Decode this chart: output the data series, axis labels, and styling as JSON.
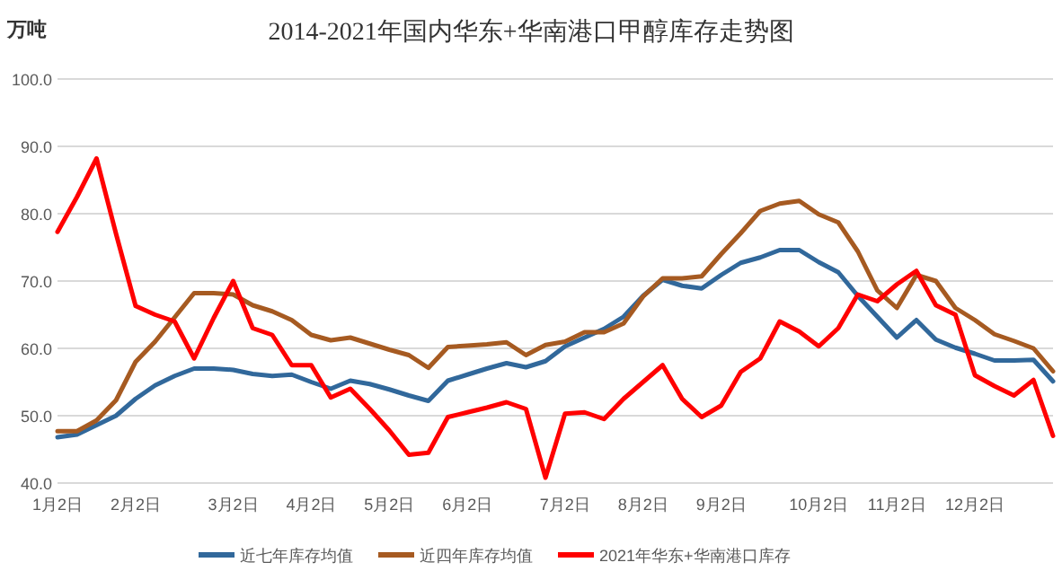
{
  "chart_data": {
    "type": "line",
    "title": "2014-2021年国内华东+华南港口甲醇库存走势图",
    "ylabel": "万吨",
    "categories": [
      "1月2日",
      null,
      null,
      null,
      "2月2日",
      null,
      null,
      null,
      null,
      "3月2日",
      null,
      null,
      null,
      "4月2日",
      null,
      null,
      null,
      "5月2日",
      null,
      null,
      null,
      "6月2日",
      null,
      null,
      null,
      null,
      "7月2日",
      null,
      null,
      null,
      "8月2日",
      null,
      null,
      null,
      "9月2日",
      null,
      null,
      null,
      null,
      "10月2日",
      null,
      null,
      null,
      "11月2日",
      null,
      null,
      null,
      "12月2日",
      null,
      null,
      null,
      null
    ],
    "ylim": [
      40,
      100
    ],
    "yticks": [
      {
        "value": 40,
        "label": "40.0"
      },
      {
        "value": 50,
        "label": "50.0"
      },
      {
        "value": 60,
        "label": "60.0"
      },
      {
        "value": 70,
        "label": "70.0"
      },
      {
        "value": 80,
        "label": "80.0"
      },
      {
        "value": 90,
        "label": "90.0"
      },
      {
        "value": 100,
        "label": "100.0"
      }
    ],
    "grid": "y",
    "legend": "bottom",
    "line_style": "solid",
    "marker": "none",
    "series": [
      {
        "name": "近七年库存均值",
        "color": "#31689b",
        "values": [
          46.8,
          47.2,
          48.6,
          50,
          52.5,
          54.5,
          55.9,
          57,
          57,
          56.8,
          56.2,
          55.9,
          56.1,
          55,
          54,
          55.2,
          54.7,
          53.9,
          53,
          52.2,
          55.2,
          56.1,
          57,
          57.8,
          57.2,
          58.1,
          60.3,
          61.6,
          62.9,
          64.7,
          67.8,
          70.2,
          69.3,
          68.9,
          70.9,
          72.7,
          73.5,
          74.6,
          74.6,
          72.8,
          71.3,
          67.8,
          64.7,
          61.6,
          64.2,
          61.3,
          60.1,
          59.2,
          58.2,
          58.2,
          58.3,
          55.1
        ]
      },
      {
        "name": "近四年库存均值",
        "color": "#a65a21",
        "values": [
          47.7,
          47.7,
          49.3,
          52.3,
          58,
          61,
          64.6,
          68.2,
          68.2,
          68,
          66.4,
          65.5,
          64.2,
          62,
          61.2,
          61.6,
          60.7,
          59.8,
          59,
          57.1,
          60.2,
          60.4,
          60.6,
          60.9,
          59,
          60.5,
          61,
          62.4,
          62.4,
          63.7,
          67.7,
          70.4,
          70.4,
          70.7,
          74,
          77.1,
          80.4,
          81.5,
          81.9,
          79.9,
          78.7,
          74.4,
          68.6,
          66,
          70.9,
          70,
          66,
          64.2,
          62.1,
          61.1,
          60,
          56.6
        ]
      },
      {
        "name": "2021年华东+华南港口库存",
        "color": "#ff0000",
        "values": [
          77.3,
          82.5,
          88.2,
          77,
          66.3,
          65,
          64,
          58.5,
          64.5,
          70,
          63,
          62,
          57.5,
          57.5,
          52.7,
          54,
          51,
          47.8,
          44.2,
          44.5,
          49.8,
          50.5,
          51.2,
          52,
          51,
          40.8,
          50.3,
          50.5,
          49.5,
          52.5,
          55,
          57.5,
          52.5,
          49.8,
          51.5,
          56.5,
          58.5,
          64,
          62.5,
          60.3,
          63,
          68,
          67,
          69.5,
          71.5,
          66.4,
          65,
          56,
          54.4,
          53,
          55.3,
          47
        ]
      }
    ]
  }
}
